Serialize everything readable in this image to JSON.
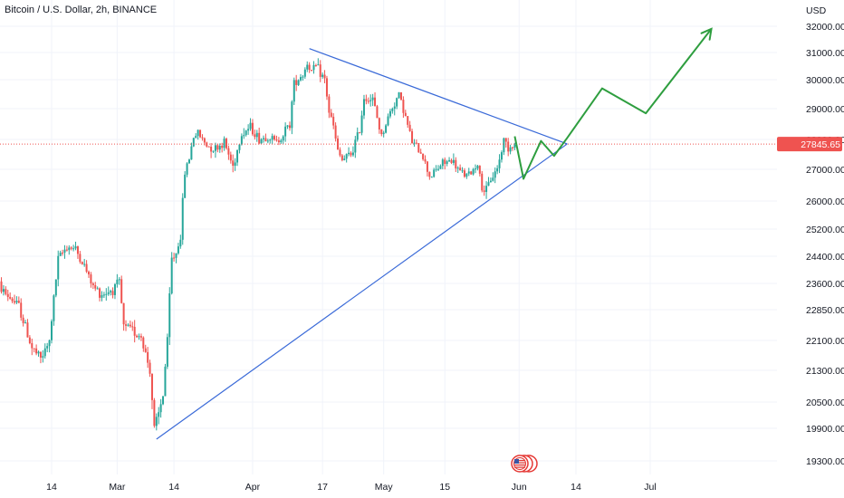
{
  "chart_data": {
    "type": "candlestick",
    "title": "Bitcoin / U.S. Dollar, 2h, BINANCE",
    "currency": "USD",
    "y_ticks": [
      19300,
      19900,
      20500,
      21300,
      22100,
      22850,
      23600,
      24400,
      25200,
      26000,
      27000,
      28000,
      29000,
      30000,
      31000,
      32000
    ],
    "y_tick_labels": [
      "19300.00",
      "19900.00",
      "20500.00",
      "21300.00",
      "22100.00",
      "22850.00",
      "23600.00",
      "24400.00",
      "25200.00",
      "26000.00",
      "27000.00",
      "28000.00",
      "29000.00",
      "30000.00",
      "31000.00",
      "32000.00"
    ],
    "x_ticks": [
      "14",
      "Mar",
      "14",
      "Apr",
      "17",
      "May",
      "15",
      "Jun",
      "14",
      "Jul"
    ],
    "last_price": "27845.65",
    "colors": {
      "up": "#26a69a",
      "down": "#ef5350",
      "trendline": "#3a6ad8",
      "projection": "#2e9e3f",
      "price_line": "#ef5350"
    },
    "price_path": [
      [
        "Feb 1",
        23800
      ],
      [
        "Feb 4",
        23300
      ],
      [
        "Feb 7",
        22950
      ],
      [
        "Feb 10",
        21900
      ],
      [
        "Feb 12",
        21600
      ],
      [
        "Feb 14",
        22050
      ],
      [
        "Feb 16",
        24300
      ],
      [
        "Feb 18",
        24700
      ],
      [
        "Feb 20",
        24600
      ],
      [
        "Feb 22",
        24100
      ],
      [
        "Feb 24",
        23500
      ],
      [
        "Feb 26",
        23300
      ],
      [
        "Feb 28",
        23400
      ],
      [
        "Mar 2",
        23600
      ],
      [
        "Mar 3",
        22400
      ],
      [
        "Mar 5",
        22350
      ],
      [
        "Mar 7",
        22200
      ],
      [
        "Mar 9",
        21300
      ],
      [
        "Mar 10",
        19850
      ],
      [
        "Mar 11",
        20200
      ],
      [
        "Mar 12",
        20700
      ],
      [
        "Mar 13",
        22100
      ],
      [
        "Mar 14",
        24300
      ],
      [
        "Mar 15",
        24500
      ],
      [
        "Mar 16",
        25000
      ],
      [
        "Mar 17",
        26900
      ],
      [
        "Mar 18",
        27400
      ],
      [
        "Mar 19",
        28100
      ],
      [
        "Mar 20",
        28200
      ],
      [
        "Mar 22",
        27800
      ],
      [
        "Mar 24",
        27700
      ],
      [
        "Mar 26",
        27900
      ],
      [
        "Mar 28",
        27100
      ],
      [
        "Mar 30",
        28200
      ],
      [
        "Apr 1",
        28400
      ],
      [
        "Apr 3",
        28000
      ],
      [
        "Apr 5",
        28100
      ],
      [
        "Apr 7",
        27900
      ],
      [
        "Apr 9",
        28300
      ],
      [
        "Apr 10",
        28500
      ],
      [
        "Apr 11",
        29900
      ],
      [
        "Apr 13",
        30200
      ],
      [
        "Apr 14",
        30600
      ],
      [
        "Apr 15",
        30300
      ],
      [
        "Apr 16",
        30500
      ],
      [
        "Apr 18",
        30000
      ],
      [
        "Apr 19",
        28900
      ],
      [
        "Apr 20",
        28400
      ],
      [
        "Apr 21",
        27600
      ],
      [
        "Apr 22",
        27300
      ],
      [
        "Apr 24",
        27500
      ],
      [
        "Apr 26",
        28300
      ],
      [
        "Apr 27",
        29400
      ],
      [
        "Apr 29",
        29300
      ],
      [
        "May 1",
        28100
      ],
      [
        "May 3",
        28900
      ],
      [
        "May 5",
        29500
      ],
      [
        "May 6",
        29000
      ],
      [
        "May 8",
        27900
      ],
      [
        "May 10",
        27600
      ],
      [
        "May 12",
        26800
      ],
      [
        "May 13",
        26900
      ],
      [
        "May 15",
        27200
      ],
      [
        "May 17",
        27300
      ],
      [
        "May 19",
        26900
      ],
      [
        "May 21",
        26800
      ],
      [
        "May 23",
        27200
      ],
      [
        "May 24",
        26400
      ],
      [
        "May 25",
        26300
      ],
      [
        "May 26",
        26700
      ],
      [
        "May 27",
        26900
      ],
      [
        "May 28",
        27300
      ],
      [
        "May 29",
        28000
      ],
      [
        "May 30",
        27750
      ],
      [
        "May 31",
        27800
      ]
    ],
    "trendlines": [
      {
        "name": "upper",
        "from": [
          "Apr 14",
          31150
        ],
        "to": [
          "Jun 12",
          27850
        ]
      },
      {
        "name": "lower",
        "from": [
          "Mar 10",
          19700
        ],
        "to": [
          "Jun 12",
          27850
        ]
      }
    ],
    "projection": [
      [
        "May 31",
        28100
      ],
      [
        "Jun 2",
        26700
      ],
      [
        "Jun 6",
        27950
      ],
      [
        "Jun 9",
        27450
      ],
      [
        "Jun 12",
        28050
      ],
      [
        "Jun 20",
        29700
      ],
      [
        "Jun 30",
        28850
      ],
      [
        "Jul 15",
        31900
      ]
    ]
  }
}
